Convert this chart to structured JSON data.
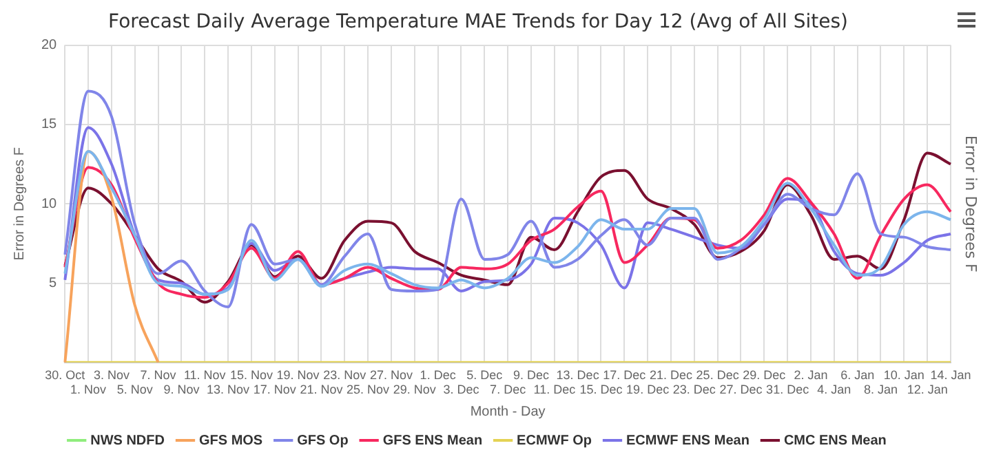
{
  "chart_data": {
    "type": "line",
    "title": "Forecast Daily Average Temperature MAE Trends for Day 12 (Avg of All Sites)",
    "xlabel": "Month - Day",
    "ylabel": "Error in Degrees F",
    "y2label": "Error in Degrees F",
    "categories": [
      "30. Oct",
      "1. Nov",
      "3. Nov",
      "5. Nov",
      "7. Nov",
      "9. Nov",
      "11. Nov",
      "13. Nov",
      "15. Nov",
      "17. Nov",
      "19. Nov",
      "21. Nov",
      "23. Nov",
      "25. Nov",
      "27. Nov",
      "29. Nov",
      "1. Dec",
      "3. Dec",
      "5. Dec",
      "7. Dec",
      "9. Dec",
      "11. Dec",
      "13. Dec",
      "15. Dec",
      "17. Dec",
      "19. Dec",
      "21. Dec",
      "23. Dec",
      "25. Dec",
      "27. Dec",
      "29. Dec",
      "31. Dec",
      "2. Jan",
      "4. Jan",
      "6. Jan",
      "8. Jan",
      "10. Jan",
      "12. Jan",
      "14. Jan"
    ],
    "ylim": [
      0,
      20
    ],
    "yticks": [
      {
        "value": 0,
        "label": null
      },
      5,
      10,
      15,
      20
    ],
    "grid": true,
    "legend": "bottom",
    "marker": "none",
    "line_style": "solid",
    "series": [
      {
        "color": "#7cb5ec",
        "values": [
          5.6,
          13.3,
          11.0,
          8.0,
          5.0,
          4.8,
          4.3,
          4.6,
          7.7,
          5.2,
          6.5,
          4.8,
          5.8,
          6.2,
          5.6,
          4.9,
          4.7,
          5.2,
          4.7,
          5.3,
          6.6,
          6.3,
          7.3,
          9.0,
          8.4,
          8.4,
          9.7,
          9.7,
          6.9,
          7.3,
          9.0,
          11.3,
          9.7,
          7.4,
          5.5,
          6.0,
          8.7,
          9.5,
          9.0
        ]
      },
      {
        "name": "NWS NDFD",
        "color": "#90ed7d",
        "values": [
          null,
          null,
          null,
          null,
          null,
          null,
          null,
          null,
          null,
          null,
          null,
          null,
          null,
          null,
          null,
          null,
          null,
          null,
          null,
          null,
          null,
          null,
          null,
          null,
          null,
          null,
          null,
          null,
          null,
          null,
          null,
          null,
          null,
          null,
          null,
          null,
          null,
          null,
          null
        ]
      },
      {
        "name": "GFS MOS",
        "color": "#f7a35c",
        "values": [
          0,
          13.3,
          10.4,
          3.6,
          0,
          null,
          null,
          null,
          null,
          null,
          null,
          null,
          null,
          null,
          null,
          null,
          null,
          null,
          null,
          null,
          null,
          null,
          null,
          null,
          null,
          null,
          null,
          null,
          null,
          null,
          null,
          null,
          null,
          null,
          null,
          null,
          null,
          null,
          null
        ]
      },
      {
        "name": "GFS Op",
        "color": "#8085e9",
        "values": [
          6.8,
          17.1,
          15.5,
          8.7,
          5.6,
          6.4,
          4.5,
          3.5,
          8.7,
          6.2,
          6.5,
          4.9,
          6.7,
          8.1,
          4.6,
          4.5,
          4.6,
          10.3,
          6.5,
          6.8,
          8.9,
          6.0,
          6.5,
          8.0,
          9.0,
          7.4,
          9.1,
          9.1,
          6.5,
          7.2,
          8.7,
          10.6,
          9.7,
          9.3,
          11.9,
          8.1,
          7.9,
          7.3,
          7.1
        ]
      },
      {
        "name": "GFS ENS Mean",
        "color": "#f7285f",
        "values": [
          6.0,
          12.3,
          11.2,
          7.8,
          5.0,
          4.3,
          4.1,
          5.0,
          7.2,
          5.3,
          7.0,
          4.9,
          5.3,
          6.0,
          5.3,
          4.7,
          4.6,
          6.0,
          5.9,
          6.2,
          7.7,
          8.4,
          9.8,
          10.8,
          6.3,
          7.4,
          9.1,
          9.0,
          7.2,
          7.7,
          9.3,
          11.6,
          10.1,
          8.1,
          5.3,
          8.0,
          10.3,
          11.2,
          9.5
        ]
      },
      {
        "name": "ECMWF Op",
        "color": "#e4d354",
        "values": [
          0,
          0,
          0,
          0,
          0,
          0,
          0,
          0,
          0,
          0,
          0,
          0,
          0,
          0,
          0,
          0,
          0,
          0,
          0,
          0,
          0,
          0,
          0,
          0,
          0,
          0,
          0,
          0,
          0,
          0,
          0,
          0,
          0,
          0,
          0,
          0,
          0,
          0,
          0
        ]
      },
      {
        "name": "ECMWF ENS Mean",
        "color": "#7b73e8",
        "values": [
          5.2,
          14.8,
          12.5,
          8.0,
          5.2,
          5.0,
          4.3,
          4.7,
          7.5,
          5.8,
          6.5,
          4.9,
          5.3,
          5.7,
          6.0,
          5.9,
          5.9,
          4.5,
          5.1,
          5.2,
          6.2,
          9.1,
          8.8,
          7.4,
          4.7,
          8.8,
          8.4,
          7.9,
          7.4,
          7.2,
          8.7,
          10.3,
          10.0,
          7.0,
          5.6,
          5.5,
          6.3,
          7.7,
          8.1
        ]
      },
      {
        "name": "CMC ENS Mean",
        "color": "#7a1030",
        "values": [
          6.1,
          11.0,
          10.0,
          8.0,
          5.9,
          5.1,
          3.8,
          5.1,
          7.4,
          5.4,
          6.7,
          5.3,
          7.7,
          8.9,
          8.8,
          7.0,
          6.3,
          5.5,
          5.2,
          4.9,
          7.9,
          7.1,
          9.5,
          11.7,
          12.1,
          10.3,
          9.7,
          8.7,
          6.6,
          7.0,
          8.3,
          11.2,
          9.3,
          6.5,
          6.7,
          5.9,
          9.0,
          13.2,
          12.5
        ]
      }
    ]
  }
}
